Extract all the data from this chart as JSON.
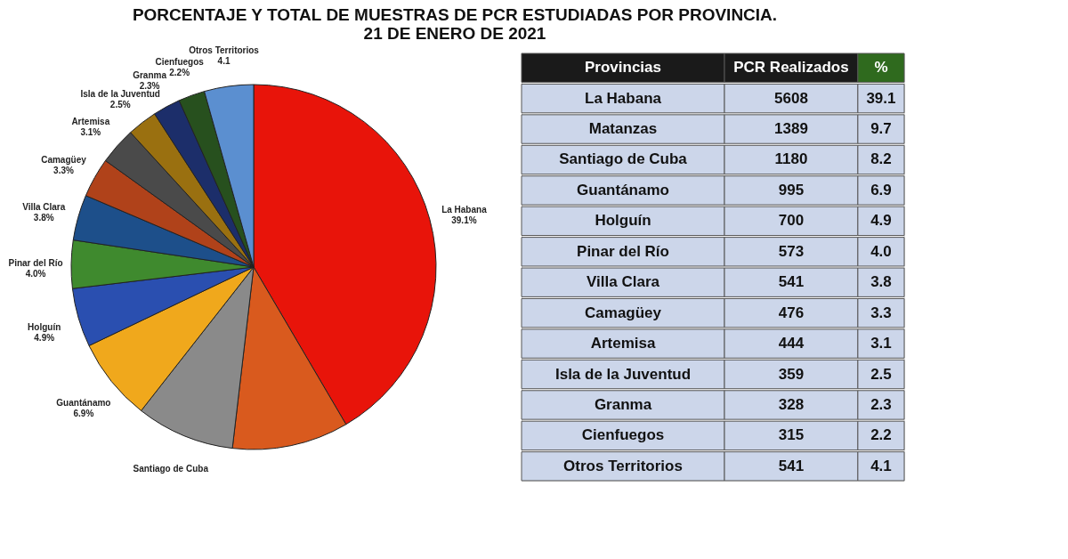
{
  "chart_data": [
    {
      "type": "pie",
      "title": "PORCENTAJE Y TOTAL DE MUESTRAS DE PCR ESTUDIADAS POR PROVINCIA.\n21 DE ENERO DE 2021",
      "categories": [
        "La Habana",
        null,
        "Santiago de Cuba",
        "Guantánamo",
        "Holguín",
        "Pinar del Río",
        "Villa Clara",
        "Camagüey",
        "Artemisa",
        "Isla de la Juventud",
        "Granma",
        "Cienfuegos",
        "Otros Territorios"
      ],
      "values": [
        39.1,
        9.7,
        8.2,
        6.9,
        4.9,
        4.0,
        3.8,
        3.3,
        3.1,
        2.5,
        2.3,
        2.2,
        4.1
      ],
      "value_labels": [
        "39.1%",
        null,
        null,
        "6.9%",
        "4.9%",
        "4.0%",
        "3.8%",
        "3.3%",
        "3.1%",
        "2.5%",
        "2.3%",
        "2.2%",
        "4.1"
      ],
      "colors": [
        "#e8140a",
        "#d95a1e",
        "#8a8a8a",
        "#f0a81c",
        "#2a4fb0",
        "#3f8a2e",
        "#1d4f8a",
        "#b0421a",
        "#4a4a4a",
        "#9a7010",
        "#1c2e6a",
        "#27501e",
        "#5b8fd0"
      ],
      "legend": false
    },
    {
      "type": "other",
      "xlabel": "Provincias",
      "categories": [
        "La Habana",
        "Matanzas",
        "Santiago de Cuba",
        "Guantánamo",
        "Holguín",
        "Pinar del Río",
        "Villa Clara",
        "Camagüey",
        "Artemisa",
        "Isla de la Juventud",
        "Granma",
        "Cienfuegos",
        "Otros Territorios"
      ],
      "series": [
        {
          "name": "PCR Realizados",
          "values": [
            5608,
            1389,
            1180,
            995,
            700,
            573,
            541,
            476,
            444,
            359,
            328,
            315,
            541
          ]
        },
        {
          "name": "%",
          "values": [
            39.1,
            9.7,
            8.2,
            6.9,
            4.9,
            4.0,
            3.8,
            3.3,
            3.1,
            2.5,
            2.3,
            2.2,
            4.1
          ],
          "value_labels": [
            "39.1",
            "9.7",
            "8.2",
            "6.9",
            "4.9",
            "4.0",
            "3.8",
            "3.3",
            "3.1",
            "2.5",
            "2.3",
            "2.2",
            "4.1"
          ]
        }
      ],
      "data_labels": true
    }
  ]
}
